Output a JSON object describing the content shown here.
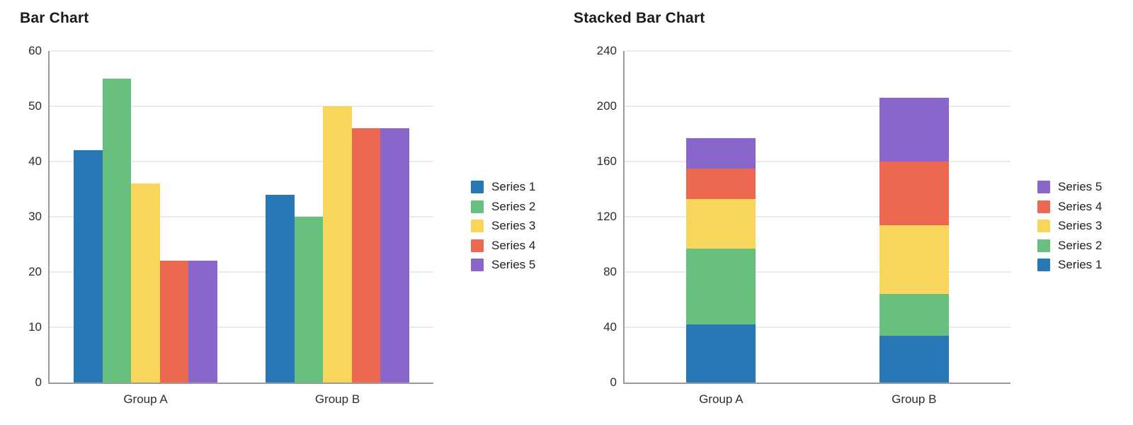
{
  "colors": {
    "background": "#ffffff",
    "grid": "#e8ebef",
    "axis": "#9a9a9a",
    "title_text": "#1b1b1b",
    "tick_text": "#2d2d2d",
    "legend_text": "#222222"
  },
  "chart_data": [
    {
      "type": "bar",
      "title": "Bar Chart",
      "categories": [
        "Group A",
        "Group B"
      ],
      "series": [
        {
          "name": "Series 1",
          "color": "#2878b5",
          "values": [
            42,
            34
          ]
        },
        {
          "name": "Series 2",
          "color": "#67c07d",
          "values": [
            55,
            30
          ]
        },
        {
          "name": "Series 3",
          "color": "#f8d55b",
          "values": [
            36,
            50
          ]
        },
        {
          "name": "Series 4",
          "color": "#ec6850",
          "values": [
            22,
            46
          ]
        },
        {
          "name": "Series 5",
          "color": "#8966c9",
          "values": [
            22,
            46
          ]
        }
      ],
      "ylim": [
        0,
        60
      ],
      "yticks": [
        0,
        10,
        20,
        30,
        40,
        50,
        60
      ],
      "grid": true,
      "legend_position": "right",
      "legend": [
        "Series 1",
        "Series 2",
        "Series 3",
        "Series 4",
        "Series 5"
      ]
    },
    {
      "type": "stacked-bar",
      "title": "Stacked Bar Chart",
      "categories": [
        "Group A",
        "Group B"
      ],
      "series": [
        {
          "name": "Series 1",
          "color": "#2878b5",
          "values": [
            42,
            34
          ]
        },
        {
          "name": "Series 2",
          "color": "#67c07d",
          "values": [
            55,
            30
          ]
        },
        {
          "name": "Series 3",
          "color": "#f8d55b",
          "values": [
            36,
            50
          ]
        },
        {
          "name": "Series 4",
          "color": "#ec6850",
          "values": [
            22,
            46
          ]
        },
        {
          "name": "Series 5",
          "color": "#8966c9",
          "values": [
            22,
            46
          ]
        }
      ],
      "stack_totals": [
        177,
        206
      ],
      "ylim": [
        0,
        240
      ],
      "yticks": [
        0,
        40,
        80,
        120,
        160,
        200,
        240
      ],
      "grid": true,
      "legend_position": "right",
      "legend": [
        "Series 5",
        "Series 4",
        "Series 3",
        "Series 2",
        "Series 1"
      ]
    }
  ]
}
